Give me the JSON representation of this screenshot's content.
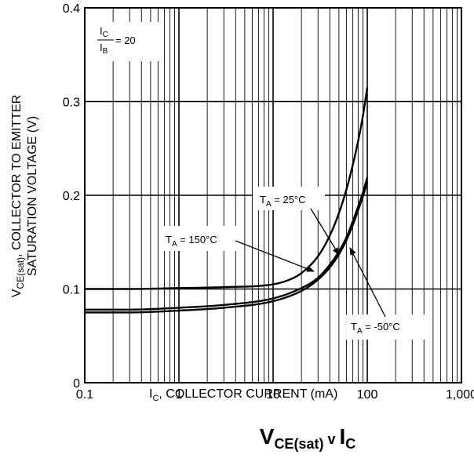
{
  "chart_data": {
    "type": "line",
    "title": "V_CE(sat) v I_C",
    "caption": {
      "v": "V",
      "ce_sub": "CE(sat)",
      "mid": " v ",
      "i": "I",
      "c_sub": "C"
    },
    "xlabel": {
      "pre": "I",
      "sub": "C",
      "post": ", COLLECTOR CURRENT (mA)"
    },
    "ylabel": {
      "line1_pre": "V",
      "line1_sub": "CE(sat)",
      "line1_post": ", COLLECTOR TO EMITTER",
      "line2": "SATURATION VOLTAGE (V)"
    },
    "xscale": "log",
    "xlim": [
      0.1,
      1000
    ],
    "ylim": [
      0,
      0.4
    ],
    "xticks": [
      0.1,
      1,
      10,
      100,
      1000
    ],
    "xtick_labels": [
      "0.1",
      "1",
      "10",
      "100",
      "1,000"
    ],
    "yticks": [
      0,
      0.1,
      0.2,
      0.3,
      0.4
    ],
    "ytick_labels": [
      "0",
      "0.1",
      "0.2",
      "0.3",
      "0.4"
    ],
    "grid": true,
    "condition": {
      "num": "I",
      "num_sub": "C",
      "den": "I",
      "den_sub": "B",
      "value": "= 20"
    },
    "series": [
      {
        "name": "T_A = 150°C",
        "label": {
          "pre": "T",
          "sub": "A",
          "post": " = 150°C"
        },
        "x": [
          0.1,
          0.3,
          1,
          3,
          10,
          15,
          20,
          30,
          40,
          50,
          60,
          70,
          80,
          90,
          100
        ],
        "y": [
          0.1,
          0.1,
          0.101,
          0.102,
          0.105,
          0.11,
          0.117,
          0.135,
          0.157,
          0.181,
          0.206,
          0.232,
          0.258,
          0.285,
          0.315
        ]
      },
      {
        "name": "T_A = 25°C",
        "label": {
          "pre": "T",
          "sub": "A",
          "post": " = 25°C"
        },
        "x": [
          0.1,
          0.3,
          1,
          3,
          10,
          20,
          30,
          40,
          50,
          60,
          70,
          80,
          90,
          100
        ],
        "y": [
          0.078,
          0.078,
          0.08,
          0.083,
          0.09,
          0.101,
          0.112,
          0.126,
          0.14,
          0.155,
          0.172,
          0.188,
          0.203,
          0.219
        ]
      },
      {
        "name": "T_A = -50°C",
        "label": {
          "pre": "T",
          "sub": "A",
          "post": " = -50°C"
        },
        "x": [
          0.1,
          0.3,
          1,
          3,
          10,
          20,
          30,
          40,
          50,
          60,
          70,
          80,
          90,
          100
        ],
        "y": [
          0.075,
          0.075,
          0.077,
          0.08,
          0.087,
          0.098,
          0.11,
          0.123,
          0.137,
          0.152,
          0.168,
          0.184,
          0.199,
          0.214
        ]
      }
    ]
  }
}
